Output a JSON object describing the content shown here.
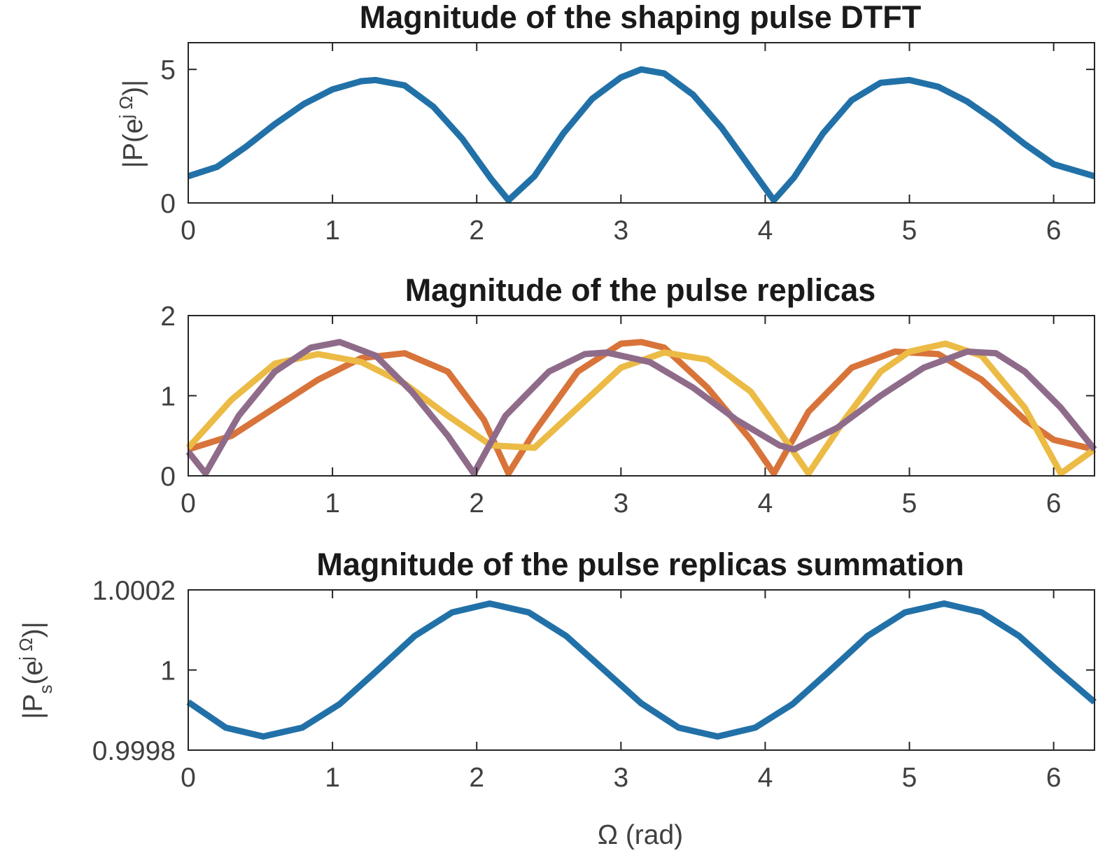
{
  "chart_data": [
    {
      "type": "line",
      "title": "Magnitude of the shaping pulse DTFT",
      "xlabel": "",
      "ylabel": {
        "main": "|P(e",
        "sup": "j Ω",
        "tail": ")|"
      },
      "xlim": [
        0,
        6.2832
      ],
      "ylim": [
        0,
        6
      ],
      "xticks": [
        0,
        1,
        2,
        3,
        4,
        5,
        6
      ],
      "xtick_labels": [
        "0",
        "1",
        "2",
        "3",
        "4",
        "5",
        "6"
      ],
      "yticks": [
        0,
        5
      ],
      "ytick_labels": [
        "0",
        "5"
      ],
      "series": [
        {
          "color": "#2171a8",
          "x": [
            0,
            0.2,
            0.4,
            0.6,
            0.8,
            1.0,
            1.2,
            1.3,
            1.5,
            1.7,
            1.9,
            2.1,
            2.22,
            2.4,
            2.6,
            2.8,
            3.0,
            3.14,
            3.3,
            3.5,
            3.7,
            3.9,
            4.06,
            4.2,
            4.4,
            4.6,
            4.8,
            5.0,
            5.2,
            5.4,
            5.6,
            5.8,
            6.0,
            6.2832
          ],
          "y": [
            1.0,
            1.35,
            2.1,
            2.95,
            3.7,
            4.25,
            4.56,
            4.6,
            4.4,
            3.6,
            2.4,
            0.9,
            0.1,
            1.0,
            2.6,
            3.9,
            4.7,
            5.0,
            4.85,
            4.05,
            2.8,
            1.3,
            0.1,
            0.95,
            2.6,
            3.85,
            4.5,
            4.6,
            4.35,
            3.8,
            3.05,
            2.2,
            1.45,
            1.0
          ]
        }
      ]
    },
    {
      "type": "line",
      "title": "Magnitude of the pulse replicas",
      "xlabel": "",
      "ylabel": "",
      "xlim": [
        0,
        6.2832
      ],
      "ylim": [
        0,
        2
      ],
      "xticks": [
        0,
        1,
        2,
        3,
        4,
        5,
        6
      ],
      "xtick_labels": [
        "0",
        "1",
        "2",
        "3",
        "4",
        "5",
        "6"
      ],
      "yticks": [
        0,
        1,
        2
      ],
      "ytick_labels": [
        "0",
        "1",
        "2"
      ],
      "series": [
        {
          "color": "#d8743a",
          "x": [
            0,
            0.3,
            0.6,
            0.9,
            1.2,
            1.5,
            1.8,
            2.05,
            2.22,
            2.4,
            2.7,
            3.0,
            3.14,
            3.3,
            3.6,
            3.9,
            4.06,
            4.3,
            4.6,
            4.9,
            5.2,
            5.5,
            5.8,
            6.0,
            6.2832
          ],
          "y": [
            0.33,
            0.5,
            0.85,
            1.2,
            1.47,
            1.53,
            1.3,
            0.7,
            0.03,
            0.55,
            1.3,
            1.65,
            1.67,
            1.6,
            1.1,
            0.45,
            0.03,
            0.8,
            1.35,
            1.55,
            1.52,
            1.2,
            0.7,
            0.45,
            0.33
          ]
        },
        {
          "color": "#ecbb45",
          "x": [
            0,
            0.3,
            0.6,
            0.9,
            1.2,
            1.5,
            1.8,
            2.1,
            2.4,
            2.7,
            3.0,
            3.3,
            3.6,
            3.9,
            4.1,
            4.3,
            4.55,
            4.8,
            5.0,
            5.25,
            5.5,
            5.8,
            6.05,
            6.2832
          ],
          "y": [
            0.35,
            0.95,
            1.4,
            1.52,
            1.42,
            1.15,
            0.75,
            0.38,
            0.35,
            0.85,
            1.35,
            1.54,
            1.45,
            1.05,
            0.55,
            0.03,
            0.7,
            1.3,
            1.55,
            1.65,
            1.5,
            0.85,
            0.03,
            0.33
          ]
        },
        {
          "color": "#8f6b8a",
          "x": [
            0,
            0.12,
            0.35,
            0.6,
            0.85,
            1.05,
            1.3,
            1.55,
            1.8,
            1.98,
            2.2,
            2.5,
            2.75,
            2.9,
            3.2,
            3.5,
            3.8,
            4.1,
            4.2,
            4.5,
            4.8,
            5.1,
            5.4,
            5.6,
            5.8,
            6.05,
            6.2832
          ],
          "y": [
            0.3,
            0.03,
            0.75,
            1.3,
            1.6,
            1.67,
            1.5,
            1.05,
            0.5,
            0.03,
            0.75,
            1.3,
            1.52,
            1.54,
            1.42,
            1.1,
            0.7,
            0.38,
            0.33,
            0.6,
            1.0,
            1.35,
            1.55,
            1.53,
            1.3,
            0.85,
            0.33
          ]
        }
      ]
    },
    {
      "type": "line",
      "title": "Magnitude of the pulse replicas summation",
      "xlabel": "Ω (rad)",
      "ylabel": {
        "main": "|P",
        "sub": "s",
        "mid": "(e",
        "sup": "j Ω",
        "tail": ")|"
      },
      "xlim": [
        0,
        6.2832
      ],
      "ylim": [
        0.9998,
        1.0002
      ],
      "xticks": [
        0,
        1,
        2,
        3,
        4,
        5,
        6
      ],
      "xtick_labels": [
        "0",
        "1",
        "2",
        "3",
        "4",
        "5",
        "6"
      ],
      "yticks": [
        0.9998,
        1,
        1.0002
      ],
      "ytick_labels": [
        "0.9998",
        "1",
        "1.0002"
      ],
      "series": [
        {
          "color": "#2171a8",
          "x": [
            0,
            0.26,
            0.52,
            0.79,
            1.05,
            1.31,
            1.57,
            1.83,
            2.09,
            2.36,
            2.62,
            2.88,
            3.14,
            3.4,
            3.67,
            3.93,
            4.19,
            4.45,
            4.71,
            4.97,
            5.24,
            5.5,
            5.76,
            6.02,
            6.2832
          ],
          "y": [
            0.99992,
            0.999856,
            0.999834,
            0.999856,
            0.999915,
            0.999999,
            1.000085,
            1.000144,
            1.000166,
            1.000144,
            1.000085,
            1.000001,
            0.999917,
            0.999856,
            0.999834,
            0.999856,
            0.999915,
            0.999999,
            1.000085,
            1.000144,
            1.000166,
            1.000144,
            1.000085,
            1.000001,
            0.99992
          ]
        }
      ]
    }
  ]
}
